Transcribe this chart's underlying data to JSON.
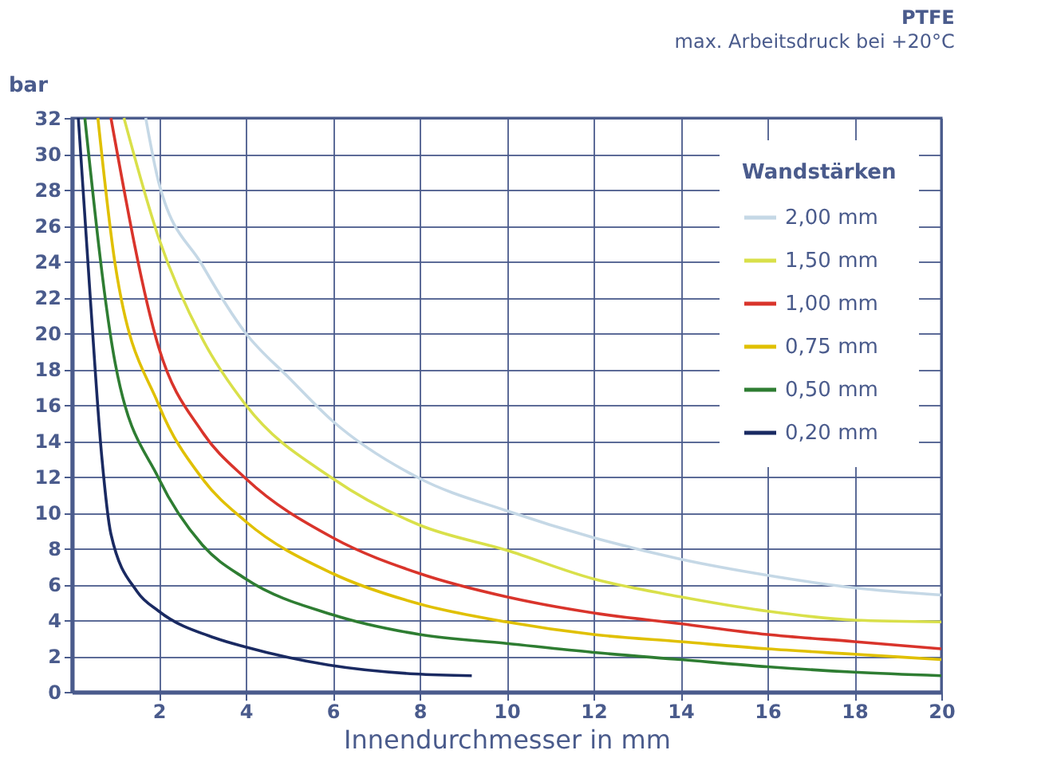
{
  "chart_data": {
    "type": "line",
    "title": "PTFE",
    "subtitle": "max. Arbeitsdruck bei +20°C",
    "xlabel": "Innendurchmesser in mm",
    "ylabel": "bar",
    "legend_title": "Wandstärken",
    "legend": "top right",
    "grid": true,
    "marker": "none",
    "line_style": "solid",
    "xlim": [
      0,
      20
    ],
    "xticks": [
      2,
      4,
      6,
      8,
      10,
      12,
      14,
      16,
      18,
      20
    ],
    "ylim": [
      0,
      32
    ],
    "yticks": [
      0,
      2,
      4,
      6,
      8,
      10,
      12,
      14,
      16,
      18,
      20,
      22,
      24,
      26,
      28,
      30,
      32
    ],
    "series": [
      {
        "name": "2,00 mm",
        "color": "#c5d8e6",
        "x": [
          1.7,
          2,
          3,
          4,
          5,
          6,
          8,
          10,
          12,
          14,
          16,
          18,
          20
        ],
        "values": [
          32,
          28.4,
          23.8,
          20,
          17.5,
          15.1,
          11.9,
          10.1,
          8.6,
          7.4,
          6.5,
          5.8,
          5.4
        ]
      },
      {
        "name": "1,50 mm",
        "color": "#d9e04a",
        "x": [
          1.2,
          2,
          3,
          4,
          6,
          8,
          10,
          12,
          14,
          16,
          18,
          20
        ],
        "values": [
          32,
          25.3,
          19.7,
          16,
          11.9,
          9.3,
          7.9,
          6.3,
          5.3,
          4.5,
          4.0,
          3.9
        ]
      },
      {
        "name": "1,00 mm",
        "color": "#d9342b",
        "x": [
          0.9,
          2,
          3,
          4,
          6,
          8,
          10,
          12,
          14,
          16,
          18,
          20
        ],
        "values": [
          32,
          19.2,
          14.5,
          11.9,
          8.6,
          6.6,
          5.3,
          4.4,
          3.8,
          3.2,
          2.8,
          2.4
        ]
      },
      {
        "name": "0,75 mm",
        "color": "#e0c000",
        "x": [
          0.6,
          1,
          2,
          3,
          4,
          6,
          8,
          10,
          12,
          14,
          16,
          18,
          20
        ],
        "values": [
          32,
          23.8,
          16,
          11.9,
          9.5,
          6.6,
          4.9,
          3.9,
          3.2,
          2.8,
          2.4,
          2.1,
          1.8
        ]
      },
      {
        "name": "0,50 mm",
        "color": "#2e7d32",
        "x": [
          0.3,
          1,
          2,
          3,
          4,
          6,
          8,
          10,
          12,
          14,
          16,
          18,
          20
        ],
        "values": [
          32,
          18.3,
          11.9,
          8.2,
          6.3,
          4.3,
          3.2,
          2.7,
          2.2,
          1.8,
          1.4,
          1.1,
          0.9
        ]
      },
      {
        "name": "0,20 mm",
        "color": "#1a2a62",
        "x": [
          0.15,
          0.43,
          0.69,
          0.9,
          1.5,
          2,
          3.3,
          4,
          5.9,
          7.9,
          9.2
        ],
        "values": [
          32,
          21.8,
          13.1,
          8.8,
          5.6,
          4.5,
          3.0,
          2.5,
          1.5,
          1.0,
          0.9
        ]
      }
    ]
  }
}
